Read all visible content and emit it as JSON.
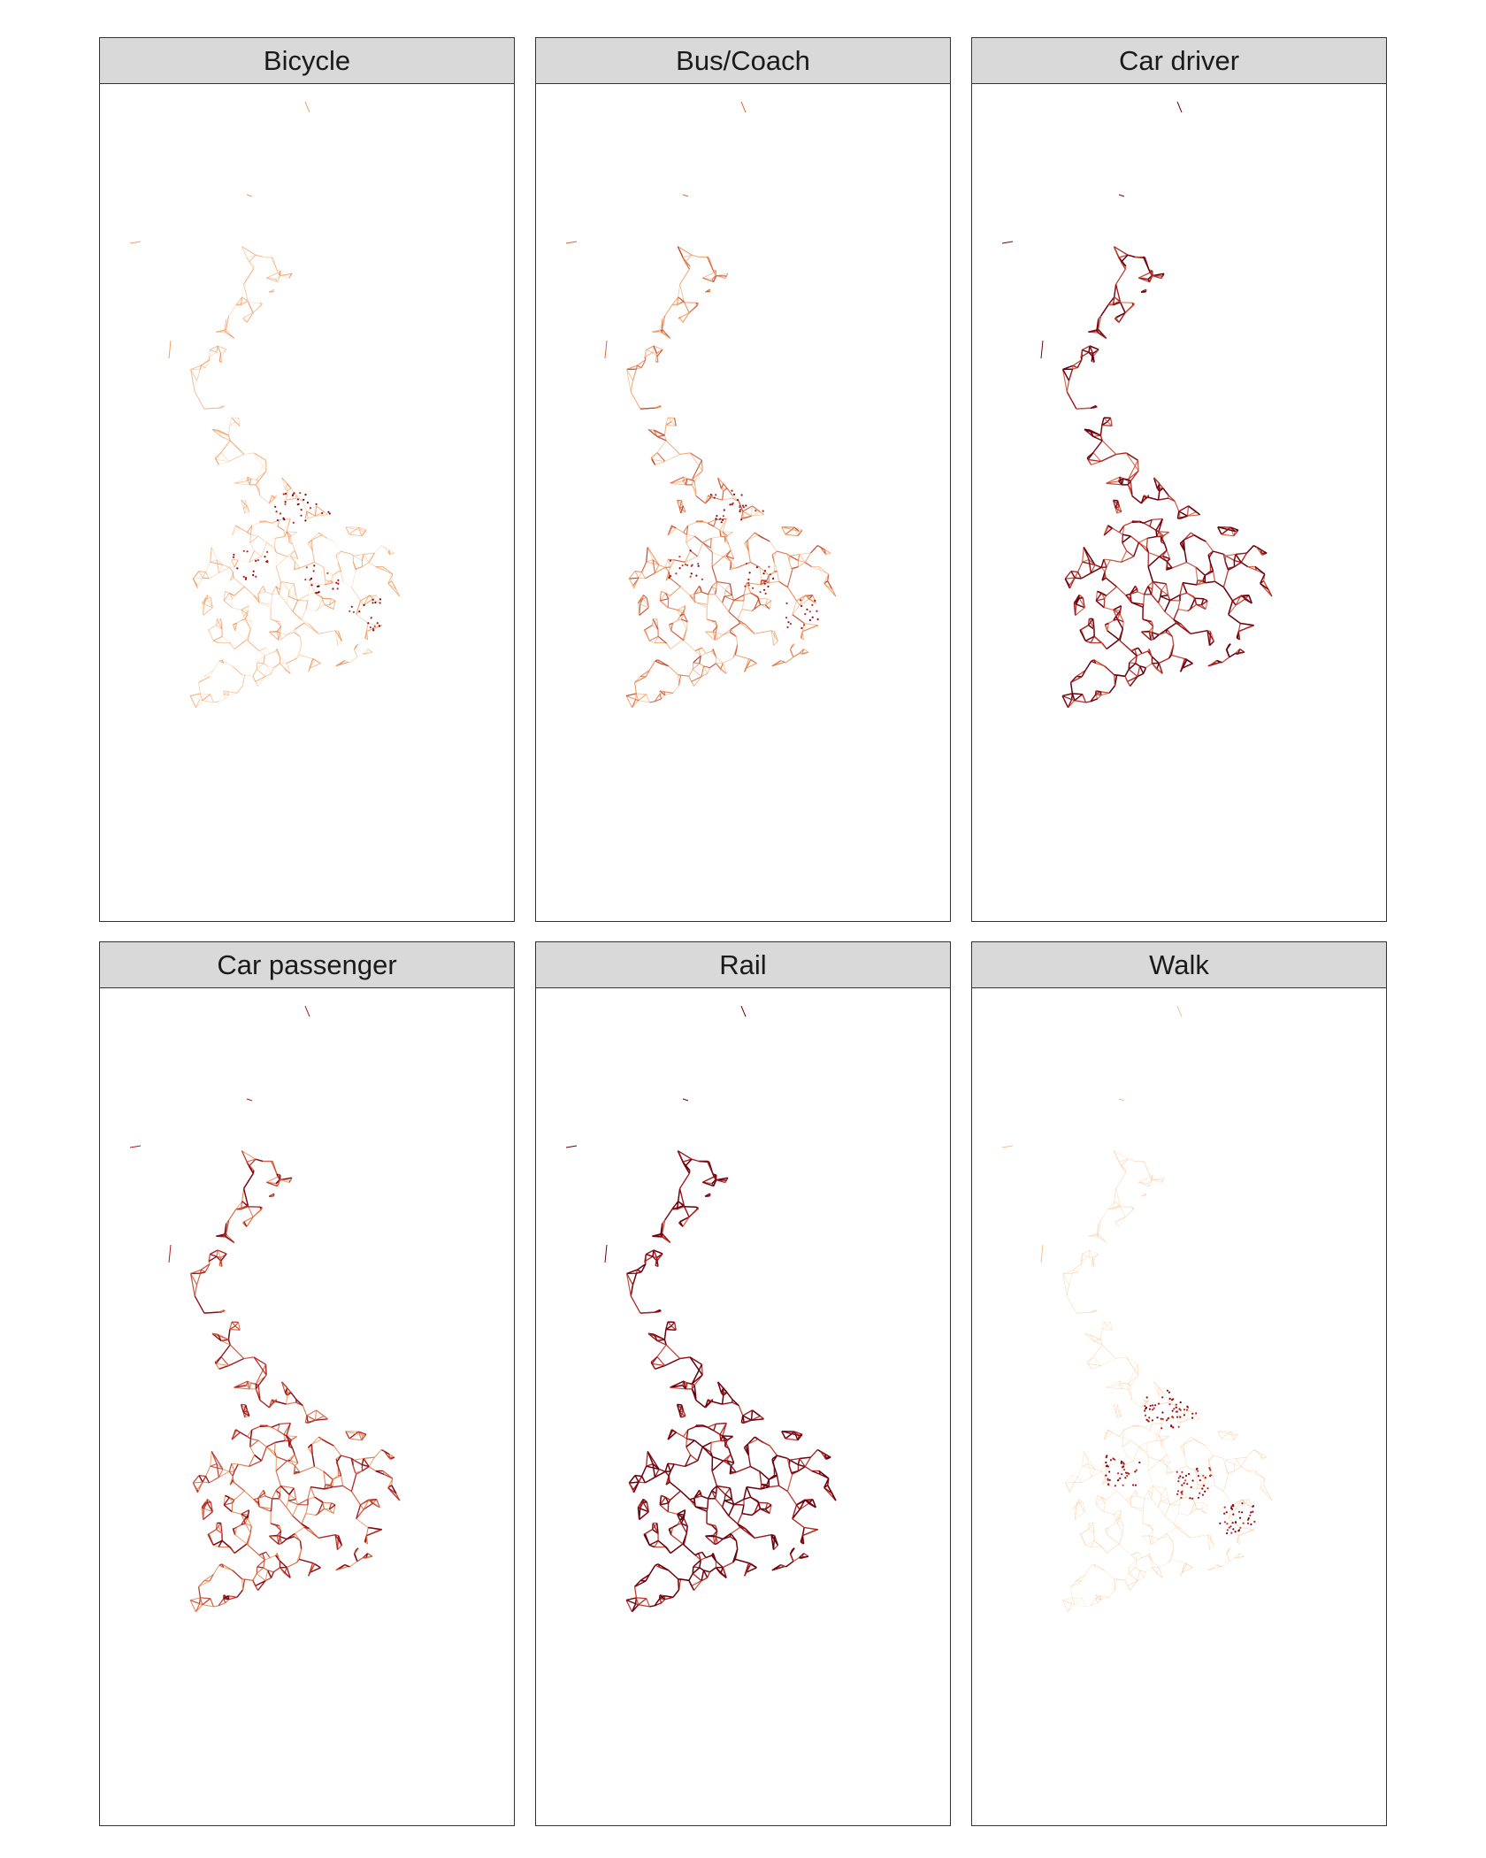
{
  "facets": [
    {
      "label": "Bicycle",
      "intensity": 0.28,
      "hotspots": "scattered"
    },
    {
      "label": "Bus/Coach",
      "intensity": 0.5,
      "hotspots": "cities"
    },
    {
      "label": "Car driver",
      "intensity": 0.88,
      "hotspots": "network"
    },
    {
      "label": "Car passenger",
      "intensity": 0.72,
      "hotspots": "network"
    },
    {
      "label": "Rail",
      "intensity": 0.95,
      "hotspots": "network"
    },
    {
      "label": "Walk",
      "intensity": 0.12,
      "hotspots": "urban-dots"
    }
  ],
  "colors": {
    "light": "#fde7c8",
    "mid": "#ef8a47",
    "dark": "#a50f15",
    "darkest": "#67000d",
    "strip_bg": "#d9d9d9",
    "border": "#333333"
  }
}
